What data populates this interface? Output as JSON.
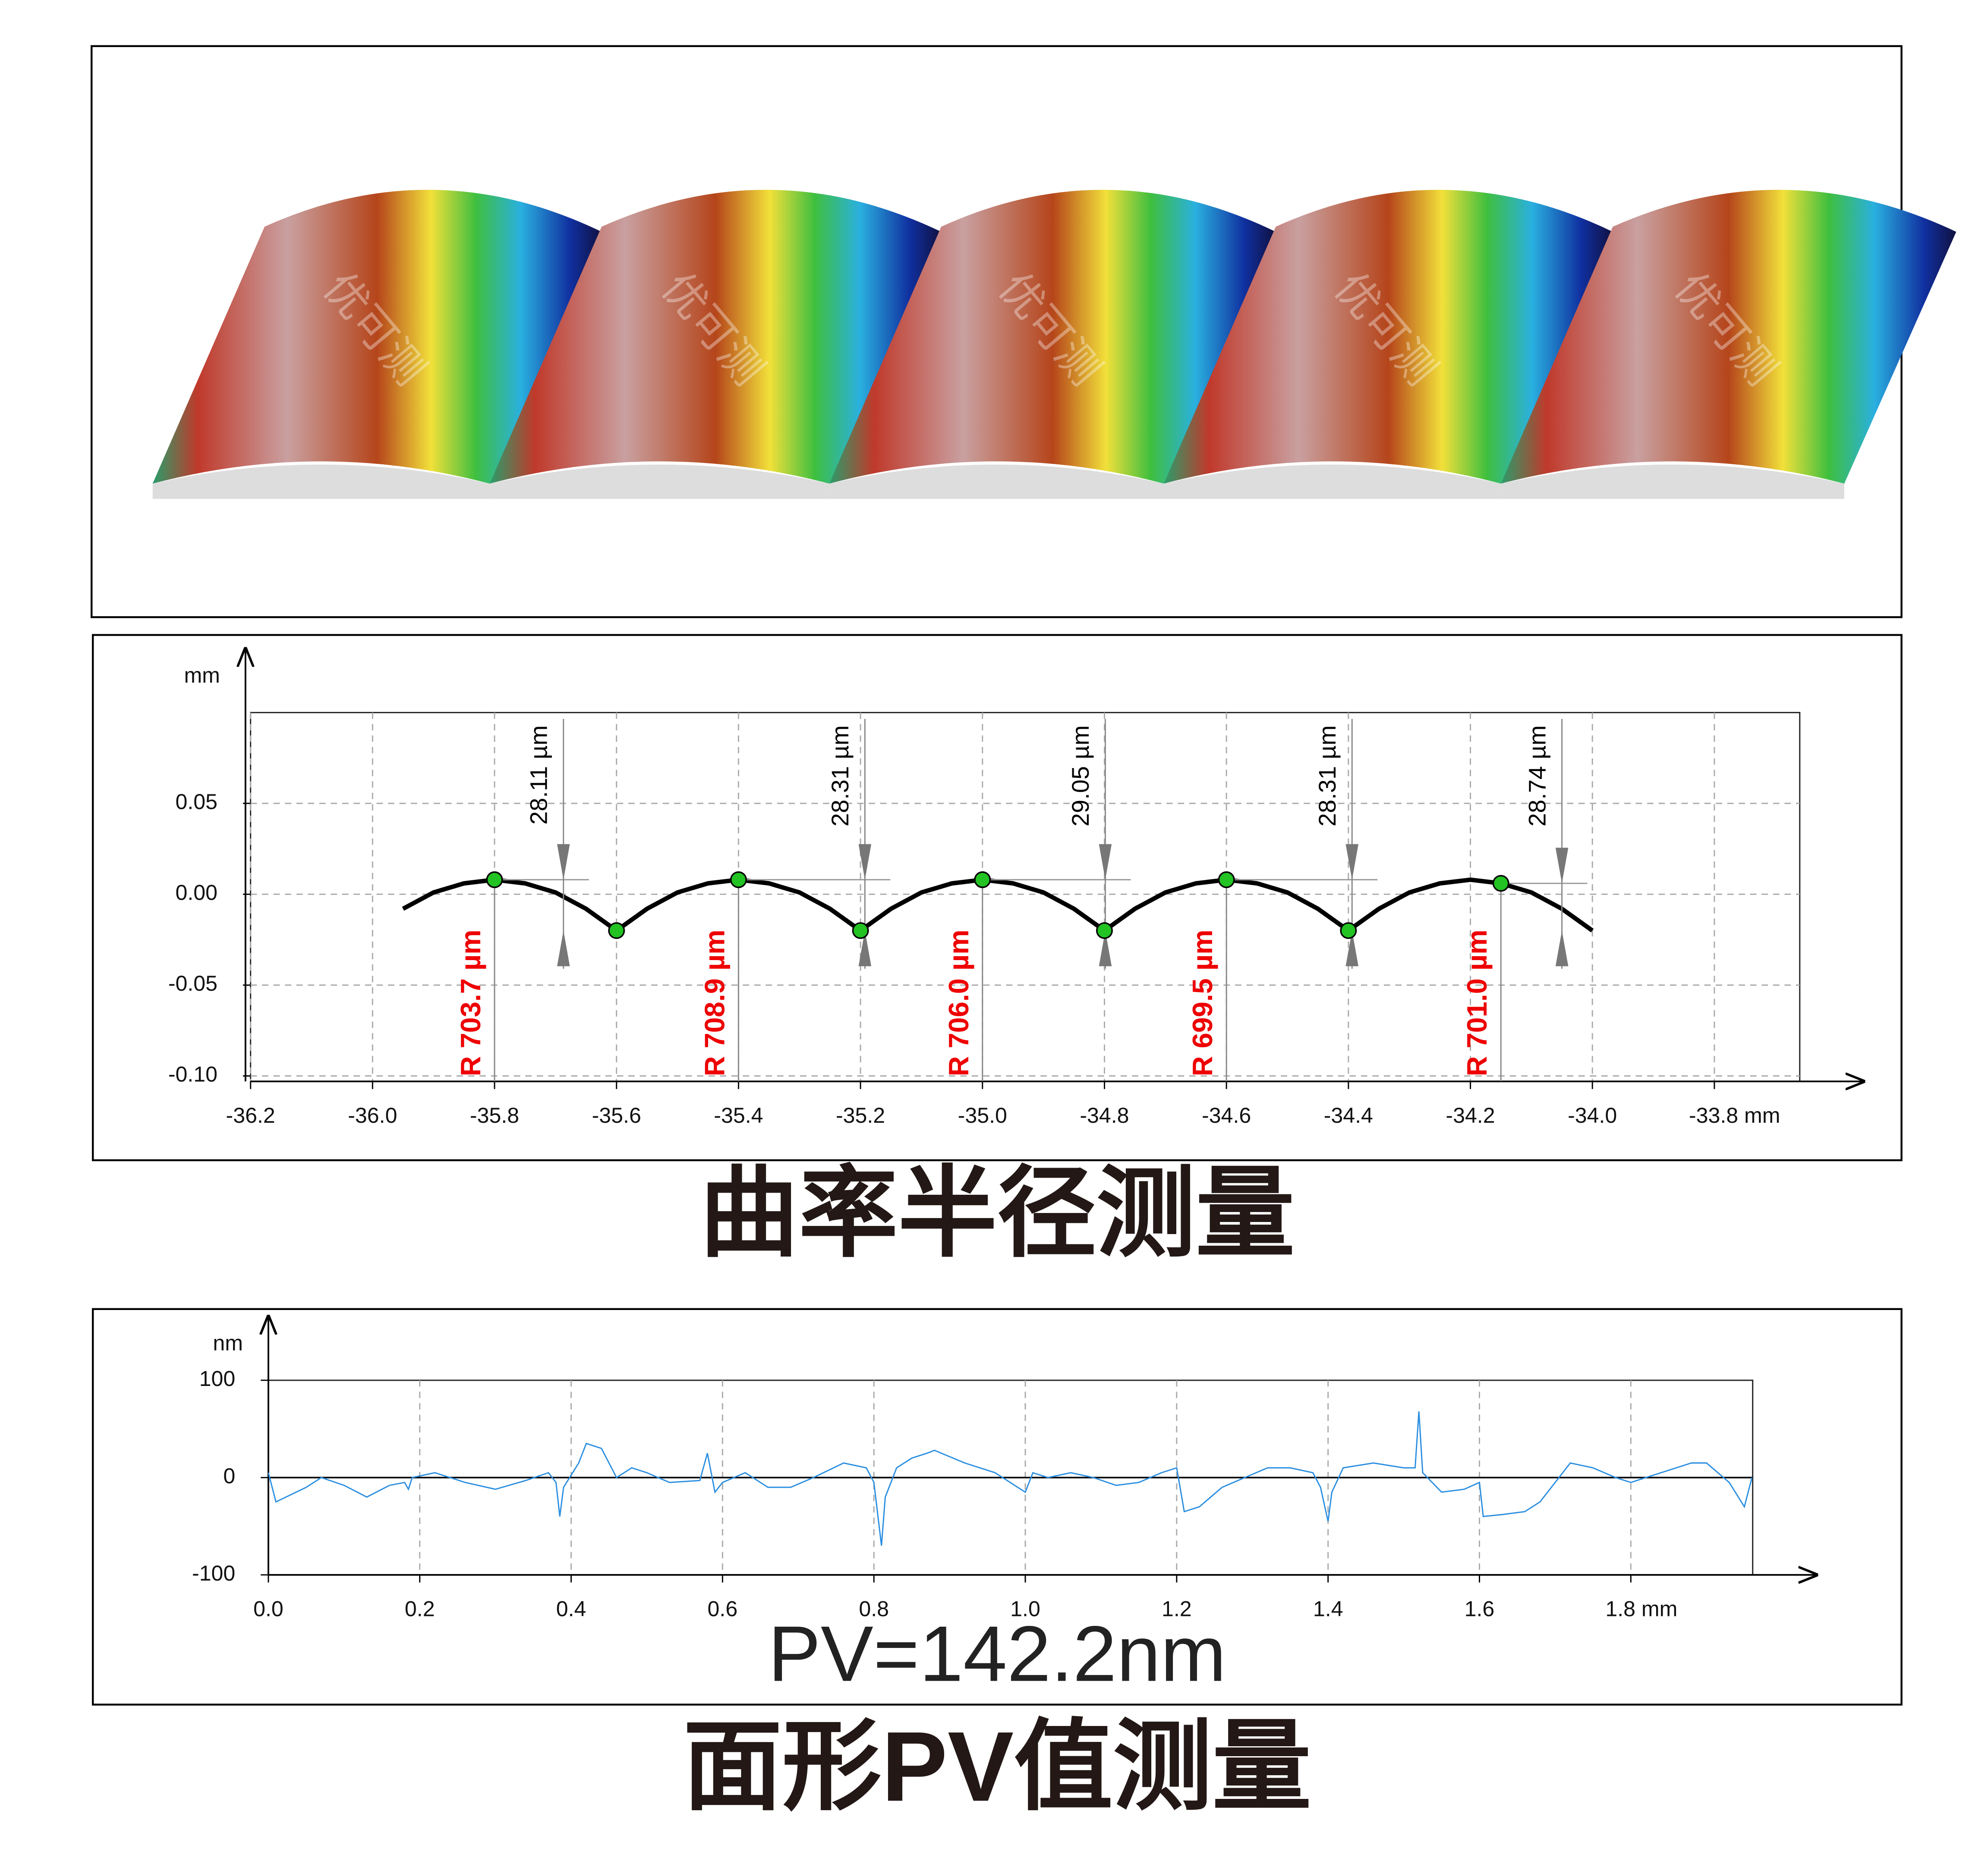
{
  "image": {
    "watermark": "优可测"
  },
  "chart_data": [
    {
      "type": "line",
      "caption": "曲率半径测量",
      "y_label": "mm",
      "grid": "both",
      "xlim": [
        -36.2,
        -33.66
      ],
      "ylim": [
        -0.103,
        0.1
      ],
      "xticks": [
        -36.2,
        {
          "value": -36,
          "label": "-36.0"
        },
        -35.8,
        -35.6,
        -35.4,
        -35.2,
        {
          "value": -35,
          "label": "-35.0"
        },
        -34.8,
        -34.6,
        -34.4,
        -34.2,
        {
          "value": -34,
          "label": "-34.0"
        },
        {
          "value": -33.8,
          "label": "-33.8 mm"
        }
      ],
      "yticks": [
        {
          "value": 0.05,
          "label": "0.05"
        },
        {
          "value": 0,
          "label": "0.00"
        },
        -0.05,
        {
          "value": -0.1,
          "label": "-0.10"
        }
      ],
      "x": [
        -35.95,
        -35.9,
        -35.85,
        -35.8,
        -35.75,
        -35.7,
        -35.65,
        -35.6,
        -35.55,
        -35.5,
        -35.45,
        -35.4,
        -35.35,
        -35.3,
        -35.25,
        -35.2,
        -35.15,
        -35.1,
        -35.05,
        -35.0,
        -34.95,
        -34.9,
        -34.85,
        -34.8,
        -34.75,
        -34.7,
        -34.65,
        -34.6,
        -34.55,
        -34.5,
        -34.45,
        -34.4,
        -34.35,
        -34.3,
        -34.25,
        -34.2,
        -34.15,
        -34.1,
        -34.05,
        -34.0
      ],
      "series": [
        {
          "color": "#000000",
          "values": [
            -0.008,
            0.001,
            0.006,
            0.008,
            0.006,
            0.001,
            -0.008,
            -0.02,
            -0.008,
            0.001,
            0.006,
            0.008,
            0.006,
            0.001,
            -0.008,
            -0.02,
            -0.008,
            0.001,
            0.006,
            0.008,
            0.006,
            0.001,
            -0.008,
            -0.02,
            -0.008,
            0.001,
            0.006,
            0.008,
            0.006,
            0.001,
            -0.008,
            -0.02,
            -0.008,
            0.001,
            0.006,
            0.008,
            0.006,
            0.001,
            -0.008,
            -0.02
          ]
        }
      ],
      "points": {
        "color": "#22c322",
        "x": [
          -35.8,
          -35.6,
          -35.4,
          -35.2,
          -35.0,
          -34.8,
          -34.6,
          -34.4,
          -34.15
        ],
        "y": [
          0.008,
          -0.02,
          0.008,
          -0.02,
          0.008,
          -0.02,
          0.008,
          -0.02,
          0.006
        ]
      },
      "radius_labels": [
        "R 703.7 µm",
        "R 708.9 µm",
        "R 706.0 µm",
        "R 699.5 µm",
        "R 701.0 µm"
      ],
      "height_labels": [
        "28.11 µm",
        "28.31 µm",
        "29.05 µm",
        "28.31 µm",
        "28.74 µm"
      ]
    },
    {
      "type": "line",
      "annotation": "PV=142.2nm",
      "caption": "面形PV值测量",
      "y_label": "nm",
      "grid": "x",
      "xlim": [
        0,
        1.961
      ],
      "ylim": [
        -100,
        100
      ],
      "xticks": [
        {
          "value": 0,
          "label": "0.0"
        },
        0.2,
        0.4,
        0.6,
        0.8,
        {
          "value": 1,
          "label": "1.0"
        },
        1.2,
        1.4,
        1.6,
        {
          "value": 1.8,
          "label": "1.8 mm"
        }
      ],
      "yticks": [
        100,
        0,
        -100
      ],
      "x": [
        0,
        0.01,
        0.05,
        0.07,
        0.1,
        0.13,
        0.16,
        0.18,
        0.185,
        0.19,
        0.22,
        0.26,
        0.3,
        0.34,
        0.37,
        0.38,
        0.385,
        0.39,
        0.41,
        0.42,
        0.44,
        0.45,
        0.46,
        0.48,
        0.5,
        0.53,
        0.57,
        0.58,
        0.585,
        0.59,
        0.6,
        0.63,
        0.66,
        0.69,
        0.72,
        0.76,
        0.79,
        0.8,
        0.81,
        0.815,
        0.83,
        0.85,
        0.87,
        0.88,
        0.92,
        0.96,
        0.99,
        1.0,
        1.01,
        1.03,
        1.06,
        1.09,
        1.12,
        1.15,
        1.18,
        1.2,
        1.21,
        1.23,
        1.26,
        1.29,
        1.32,
        1.35,
        1.38,
        1.39,
        1.4,
        1.405,
        1.42,
        1.46,
        1.5,
        1.515,
        1.52,
        1.525,
        1.55,
        1.58,
        1.6,
        1.605,
        1.63,
        1.66,
        1.68,
        1.7,
        1.72,
        1.75,
        1.78,
        1.8,
        1.84,
        1.88,
        1.9,
        1.93,
        1.95,
        1.96
      ],
      "series": [
        {
          "color": "#2a8ee0",
          "values": [
            5,
            -25,
            -10,
            0,
            -8,
            -20,
            -8,
            -5,
            -12,
            0,
            5,
            -5,
            -12,
            -3,
            5,
            -5,
            -40,
            -10,
            15,
            35,
            30,
            15,
            0,
            10,
            5,
            -5,
            -3,
            25,
            5,
            -15,
            -5,
            5,
            -10,
            -10,
            0,
            15,
            10,
            -5,
            -70,
            -20,
            10,
            20,
            25,
            28,
            15,
            5,
            -10,
            -15,
            5,
            0,
            5,
            0,
            -8,
            -5,
            5,
            10,
            -35,
            -30,
            -10,
            0,
            10,
            10,
            5,
            -10,
            -45,
            -15,
            10,
            15,
            10,
            10,
            68,
            5,
            -15,
            -12,
            -5,
            -40,
            -38,
            -35,
            -25,
            -5,
            15,
            10,
            0,
            -5,
            5,
            15,
            15,
            -5,
            -30,
            0
          ]
        }
      ]
    }
  ]
}
